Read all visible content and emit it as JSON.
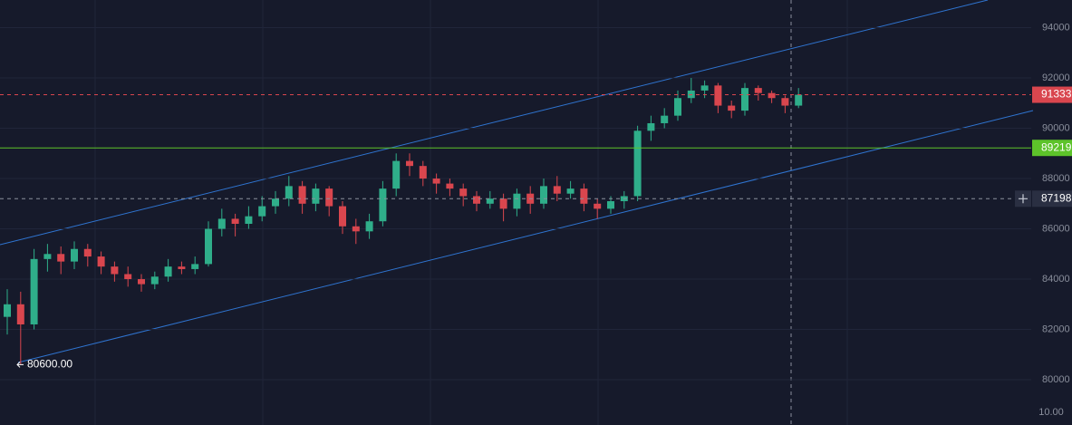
{
  "chart_data": {
    "type": "candlestick",
    "open": [
      82500,
      83000,
      82200,
      84800,
      85000,
      84700,
      85200,
      84900,
      84500,
      84200,
      84000,
      83800,
      84100,
      84500,
      84400,
      84600,
      86000,
      86400,
      86200,
      86500,
      86900,
      87200,
      87700,
      87000,
      87600,
      86900,
      86100,
      85900,
      86300,
      87600,
      88700,
      88500,
      88000,
      87800,
      87600,
      87300,
      87000,
      87200,
      86800,
      87400,
      87000,
      87700,
      87400,
      87600,
      87000,
      86800,
      87100,
      87300,
      89900,
      90200,
      90500,
      91200,
      91500,
      91700,
      90900,
      90700,
      91600,
      91400,
      91200,
      90900
    ],
    "high": [
      83600,
      83500,
      85200,
      85400,
      85300,
      85500,
      85400,
      85100,
      84700,
      84500,
      84200,
      84300,
      84800,
      84700,
      84900,
      86300,
      86800,
      86600,
      86900,
      87300,
      87500,
      88100,
      87900,
      87800,
      87700,
      87100,
      86400,
      86600,
      87900,
      89000,
      89000,
      88700,
      88200,
      88000,
      87800,
      87500,
      87500,
      87400,
      87600,
      87700,
      88000,
      88100,
      87900,
      87800,
      87200,
      87300,
      87500,
      90100,
      90500,
      90800,
      91500,
      92000,
      91900,
      91800,
      91100,
      91800,
      91700,
      91500,
      91300,
      91600
    ],
    "low": [
      81800,
      80600,
      82000,
      84300,
      84200,
      84400,
      84500,
      84200,
      83900,
      83700,
      83500,
      83600,
      83900,
      84200,
      84200,
      84500,
      85700,
      85700,
      86000,
      86300,
      86600,
      86900,
      86600,
      86700,
      86500,
      85800,
      85400,
      85600,
      86100,
      87300,
      88100,
      87700,
      87400,
      87300,
      86900,
      86700,
      86800,
      86300,
      86500,
      86600,
      86800,
      87100,
      87200,
      86700,
      86400,
      86600,
      86800,
      87100,
      89500,
      90000,
      90300,
      91000,
      91200,
      90600,
      90400,
      90500,
      91100,
      91000,
      90600,
      90800
    ],
    "close": [
      83000,
      82200,
      84800,
      85000,
      84700,
      85200,
      84900,
      84500,
      84200,
      84000,
      83800,
      84100,
      84500,
      84400,
      84600,
      86000,
      86400,
      86200,
      86500,
      86900,
      87200,
      87700,
      87000,
      87600,
      86900,
      86100,
      85900,
      86300,
      87600,
      88700,
      88500,
      88000,
      87800,
      87600,
      87300,
      87000,
      87200,
      86800,
      87400,
      87000,
      87700,
      87400,
      87600,
      87000,
      86800,
      87100,
      87300,
      89900,
      90200,
      90500,
      91200,
      91500,
      91700,
      90900,
      90700,
      91600,
      91400,
      91200,
      90900,
      91333
    ],
    "up_color": "#2fae8a",
    "down_color": "#d9464e",
    "ylim": [
      78200,
      95100
    ],
    "yticks": [
      80000,
      82000,
      84000,
      86000,
      88000,
      90000,
      92000,
      94000
    ],
    "grid": true,
    "price_lines": [
      {
        "value": 91333,
        "color": "#d9464e",
        "style": "dashed"
      },
      {
        "value": 89219,
        "color": "#5dc32a",
        "style": "solid"
      },
      {
        "value": 87198,
        "color": "#8a8f9c",
        "style": "dashed"
      }
    ],
    "low_marker": {
      "value": 80600,
      "label": "80600.00"
    },
    "secondary_scale_label": "10.00"
  }
}
